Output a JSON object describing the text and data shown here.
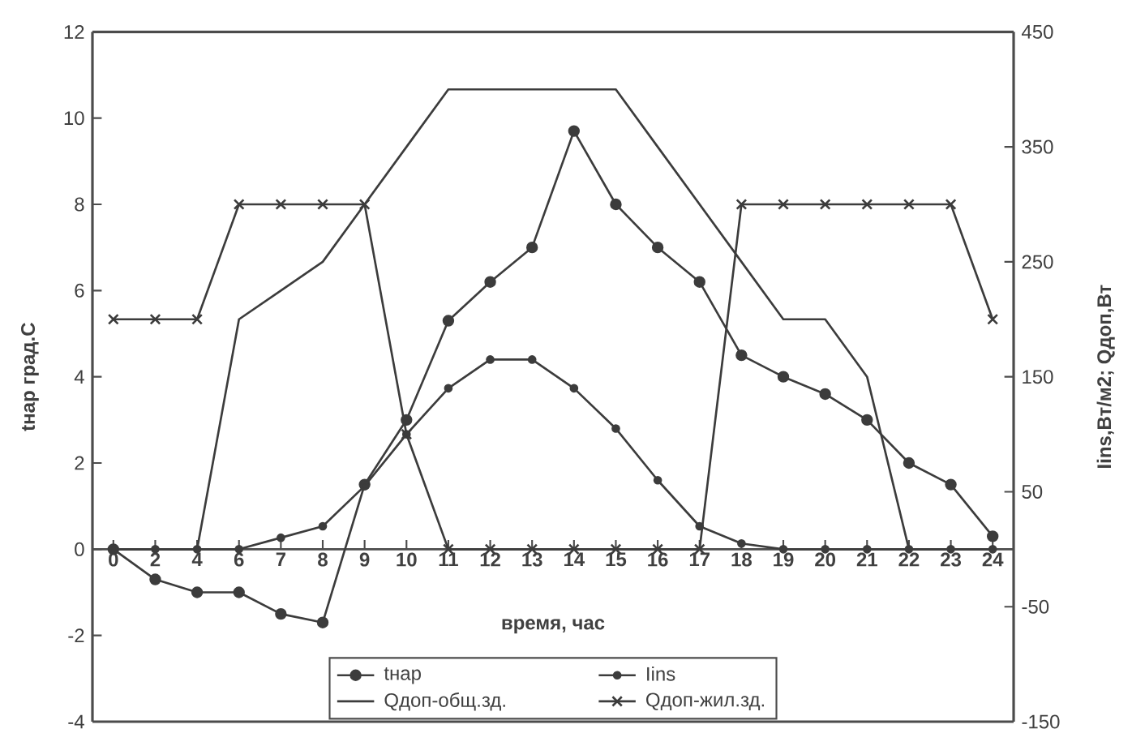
{
  "chart_data": {
    "type": "line",
    "xlabel": "время, час",
    "ylabel": "tнар град.С",
    "y2label": "Iins,Вт/м2;  Qдоп,Вт",
    "categories": [
      "0",
      "2",
      "4",
      "6",
      "7",
      "8",
      "9",
      "10",
      "11",
      "12",
      "13",
      "14",
      "15",
      "16",
      "17",
      "18",
      "19",
      "20",
      "21",
      "22",
      "23",
      "24"
    ],
    "ylim": [
      -4,
      12
    ],
    "yticks": [
      -4,
      -2,
      0,
      2,
      4,
      6,
      8,
      10,
      12
    ],
    "y2lim": [
      -150,
      450
    ],
    "y2ticks": [
      -150,
      -50,
      50,
      150,
      250,
      350,
      450
    ],
    "grid": false,
    "legend": "bottom",
    "line_style": "solid",
    "series": [
      {
        "name": "tнар",
        "color": "#3c3c3c",
        "marker": "circle",
        "axis": "y",
        "values": [
          0,
          -0.7,
          -1.0,
          -1.0,
          -1.5,
          -1.7,
          1.5,
          3.0,
          5.3,
          6.2,
          7.0,
          9.7,
          8.0,
          7.0,
          6.2,
          4.5,
          4.0,
          3.6,
          3.0,
          2.0,
          1.5,
          0.3
        ]
      },
      {
        "name": "Iins",
        "color": "#3c3c3c",
        "marker": "circle",
        "axis": "y2",
        "values": [
          0,
          0,
          0,
          0,
          10,
          20,
          55,
          100,
          140,
          165,
          165,
          140,
          105,
          60,
          20,
          5,
          0,
          0,
          0,
          0,
          0,
          0
        ]
      },
      {
        "name": "Qдоп-общ.зд.",
        "color": "#3c3c3c",
        "marker": "none",
        "axis": "y2",
        "values": [
          0,
          0,
          0,
          200,
          225,
          250,
          300,
          350,
          400,
          400,
          400,
          400,
          400,
          350,
          300,
          250,
          200,
          200,
          150,
          0,
          0,
          0
        ]
      },
      {
        "name": "Qдоп-жил.зд.",
        "color": "#3c3c3c",
        "marker": "cross",
        "axis": "y2",
        "values": [
          200,
          200,
          200,
          300,
          300,
          300,
          300,
          100,
          0,
          0,
          0,
          0,
          0,
          0,
          0,
          300,
          300,
          300,
          300,
          300,
          300,
          200
        ]
      }
    ]
  }
}
